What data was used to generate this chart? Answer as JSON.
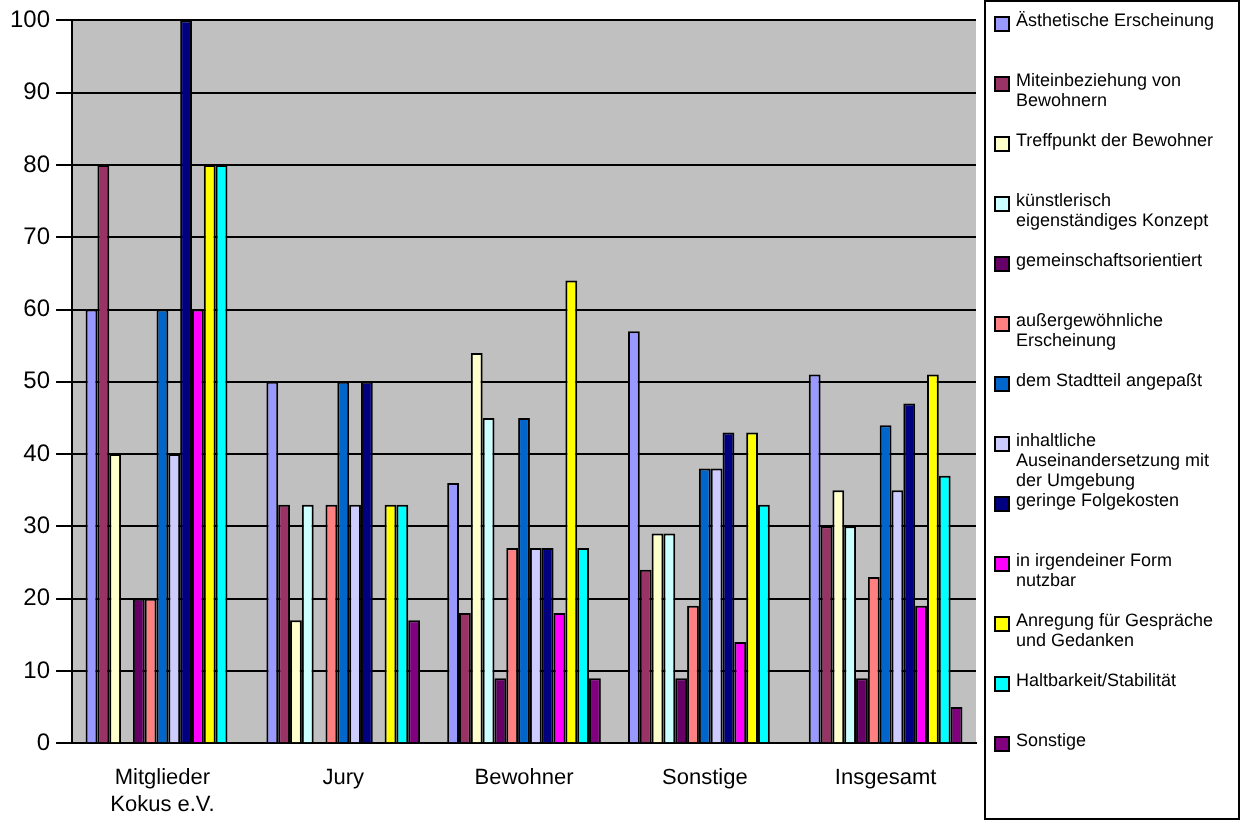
{
  "chart_data": {
    "type": "bar",
    "categories": [
      "Mitglieder Kokus e.V.",
      "Jury",
      "Bewohner",
      "Sonstige",
      "Insgesamt"
    ],
    "series": [
      {
        "name": "Ästhetische Erscheinung",
        "color": "#9999ff",
        "values": [
          60,
          50,
          36,
          57,
          51
        ]
      },
      {
        "name": "Miteinbeziehung von Bewohnern",
        "color": "#993366",
        "values": [
          80,
          33,
          18,
          24,
          30
        ]
      },
      {
        "name": "Treffpunkt der Bewohner",
        "color": "#ffffcc",
        "values": [
          40,
          17,
          54,
          29,
          35
        ]
      },
      {
        "name": "künstlerisch eigenständiges Konzept",
        "color": "#ccffff",
        "values": [
          0,
          33,
          45,
          29,
          30
        ]
      },
      {
        "name": "gemeinschaftsorientiert",
        "color": "#660066",
        "values": [
          20,
          0,
          9,
          9,
          9
        ]
      },
      {
        "name": "außergewöhnliche Erscheinung",
        "color": "#ff8080",
        "values": [
          20,
          33,
          27,
          19,
          23
        ]
      },
      {
        "name": "dem Stadtteil angepaßt",
        "color": "#0066cc",
        "values": [
          60,
          50,
          45,
          38,
          44
        ]
      },
      {
        "name": "inhaltliche Auseinandersetzung mit der Umgebung",
        "color": "#ccccff",
        "values": [
          40,
          33,
          27,
          38,
          35
        ]
      },
      {
        "name": "geringe Folgekosten",
        "color": "#000080",
        "values": [
          100,
          50,
          27,
          43,
          47
        ]
      },
      {
        "name": "in irgendeiner Form nutzbar",
        "color": "#ff00ff",
        "values": [
          60,
          0,
          18,
          14,
          19
        ]
      },
      {
        "name": "Anregung für Gespräche und Gedanken",
        "color": "#ffff00",
        "values": [
          80,
          33,
          64,
          43,
          51
        ]
      },
      {
        "name": "Haltbarkeit/Stabilität",
        "color": "#00ffff",
        "values": [
          80,
          33,
          27,
          33,
          37
        ]
      },
      {
        "name": "Sonstige",
        "color": "#800080",
        "values": [
          0,
          17,
          9,
          0,
          5
        ]
      }
    ],
    "ylim": [
      0,
      100
    ],
    "yticks": [
      0,
      10,
      20,
      30,
      40,
      50,
      60,
      70,
      80,
      90,
      100
    ],
    "grid": "y",
    "legend": "right"
  }
}
